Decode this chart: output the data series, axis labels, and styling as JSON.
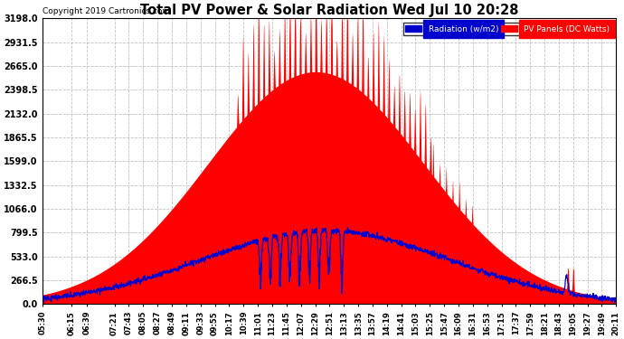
{
  "title": "Total PV Power & Solar Radiation Wed Jul 10 20:28",
  "copyright": "Copyright 2019 Cartronics.com",
  "legend_radiation": "Radiation (w/m2)",
  "legend_pv": "PV Panels (DC Watts)",
  "ymax": 3198.0,
  "ymin": 0.0,
  "ytick_interval": 266.5,
  "background_color": "#ffffff",
  "plot_bg_color": "#ffffff",
  "grid_color": "#bbbbbb",
  "radiation_color": "#0000cc",
  "pv_color": "#ff0000",
  "pv_fill_color": "#ff0000",
  "time_labels": [
    "05:30",
    "06:15",
    "06:39",
    "07:21",
    "07:43",
    "08:05",
    "08:27",
    "08:49",
    "09:11",
    "09:33",
    "09:55",
    "10:17",
    "10:39",
    "11:01",
    "11:23",
    "11:45",
    "12:07",
    "12:29",
    "12:51",
    "13:13",
    "13:35",
    "13:57",
    "14:19",
    "14:41",
    "15:03",
    "15:25",
    "15:47",
    "16:09",
    "16:31",
    "16:53",
    "17:15",
    "17:37",
    "17:59",
    "18:21",
    "18:43",
    "19:05",
    "19:27",
    "19:49",
    "20:11"
  ],
  "figsize": [
    6.9,
    3.75
  ],
  "dpi": 100
}
